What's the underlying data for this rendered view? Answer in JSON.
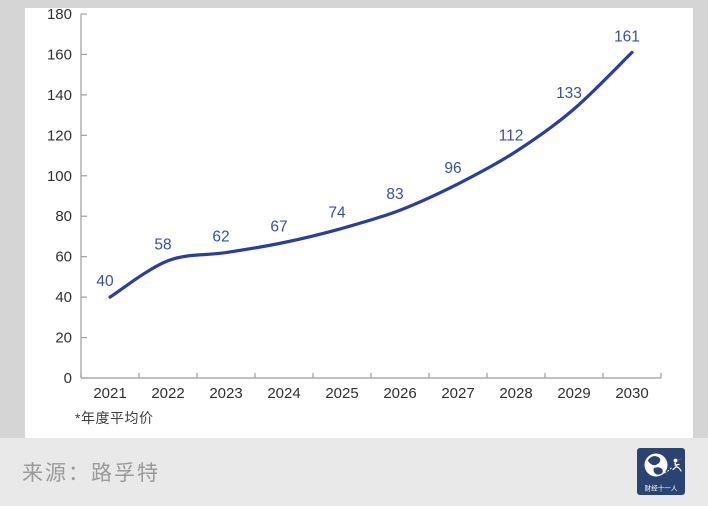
{
  "chart_data": {
    "type": "line",
    "title": "",
    "categories": [
      "2021",
      "2022",
      "2023",
      "2024",
      "2025",
      "2026",
      "2027",
      "2028",
      "2029",
      "2030"
    ],
    "values": [
      40,
      58,
      62,
      67,
      74,
      83,
      96,
      112,
      133,
      161
    ],
    "yticks": [
      0,
      20,
      40,
      60,
      80,
      100,
      120,
      140,
      160,
      180
    ],
    "ylim": [
      0,
      180
    ],
    "xlabel": "",
    "ylabel": "",
    "grid": false,
    "legend": "none",
    "data_labels": true,
    "footnote": "*年度平均价",
    "line_color": "#2b3e9f",
    "label_color": "#3a4fa3",
    "axis_color": "#9e9e9e",
    "tick_color": "#303030"
  },
  "footer": {
    "source_label": "来源：路孚特",
    "logo_text": "财经十一人"
  }
}
